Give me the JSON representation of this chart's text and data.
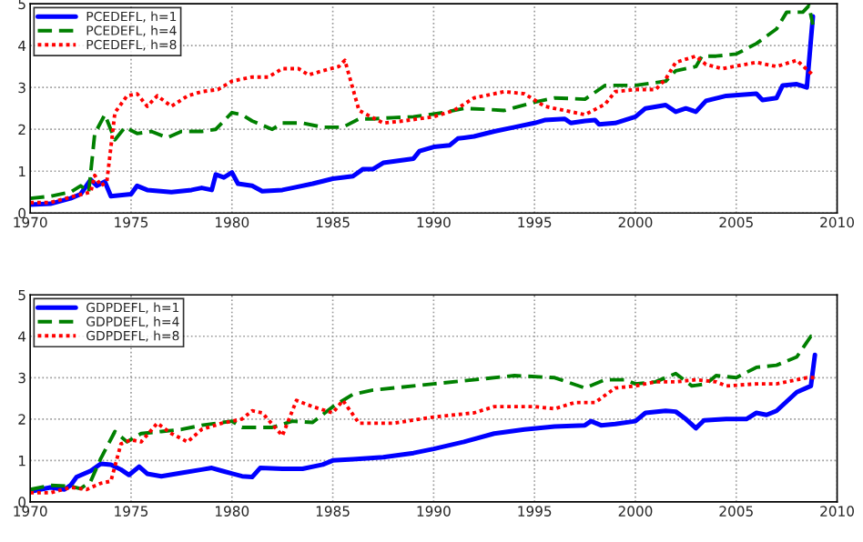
{
  "chart_data": [
    {
      "type": "line",
      "xlim": [
        1970,
        2010
      ],
      "xticks": [
        1970,
        1975,
        1980,
        1985,
        1990,
        1995,
        2000,
        2005,
        2010
      ],
      "ylim": [
        0,
        5
      ],
      "yticks": [
        0,
        1,
        2,
        3,
        4,
        5
      ],
      "grid": true,
      "legend": "top left",
      "series": [
        {
          "name": "PCEDEFL, h=1",
          "color": "#0000ff",
          "line_style": "solid",
          "x": [
            1970,
            1971,
            1972,
            1972.5,
            1973,
            1973.3,
            1973.7,
            1974,
            1975,
            1975.3,
            1975.8,
            1977,
            1978,
            1978.5,
            1979,
            1979.2,
            1979.6,
            1980,
            1980.3,
            1981,
            1981.5,
            1982.5,
            1983,
            1984,
            1985,
            1986,
            1986.5,
            1987,
            1987.5,
            1989,
            1989.3,
            1990,
            1990.8,
            1991.2,
            1992,
            1993,
            1994,
            1995,
            1995.5,
            1996.5,
            1996.8,
            1997.5,
            1998,
            1998.2,
            1999,
            2000,
            2000.5,
            2001.5,
            2002,
            2002.5,
            2003,
            2003.5,
            2004.5,
            2006,
            2006.3,
            2007,
            2007.3,
            2008,
            2008.5,
            2008.8
          ],
          "values": [
            0.2,
            0.22,
            0.35,
            0.45,
            0.8,
            0.65,
            0.75,
            0.4,
            0.45,
            0.65,
            0.55,
            0.5,
            0.55,
            0.6,
            0.55,
            0.92,
            0.85,
            0.97,
            0.7,
            0.65,
            0.52,
            0.55,
            0.6,
            0.7,
            0.82,
            0.88,
            1.05,
            1.05,
            1.2,
            1.3,
            1.48,
            1.58,
            1.62,
            1.78,
            1.83,
            1.95,
            2.05,
            2.15,
            2.22,
            2.25,
            2.15,
            2.2,
            2.22,
            2.12,
            2.15,
            2.3,
            2.5,
            2.58,
            2.42,
            2.5,
            2.42,
            2.68,
            2.8,
            2.85,
            2.7,
            2.75,
            3.05,
            3.08,
            3.0,
            4.7
          ]
        },
        {
          "name": "PCEDEFL, h=4",
          "color": "#008000",
          "line_style": "dashed",
          "x": [
            1970,
            1971,
            1972,
            1972.5,
            1972.9,
            1973.2,
            1973.7,
            1974.2,
            1974.7,
            1975.3,
            1976,
            1976.8,
            1977.5,
            1978.5,
            1979.2,
            1980,
            1980.5,
            1981,
            1982,
            1982.5,
            1983.5,
            1984.5,
            1985.5,
            1986.3,
            1987,
            1988,
            1989,
            1990.5,
            1991.5,
            1992.5,
            1993.5,
            1995,
            1996,
            1997.5,
            1998.5,
            2000,
            2001.5,
            2002,
            2003,
            2003.3,
            2004,
            2005,
            2006,
            2007,
            2007.5,
            2008.3,
            2008.6,
            2008.8
          ],
          "values": [
            0.35,
            0.4,
            0.5,
            0.65,
            0.5,
            1.9,
            2.35,
            1.75,
            2.05,
            1.9,
            1.95,
            1.8,
            1.95,
            1.95,
            2.0,
            2.4,
            2.35,
            2.2,
            2.0,
            2.15,
            2.15,
            2.05,
            2.05,
            2.25,
            2.25,
            2.28,
            2.3,
            2.4,
            2.5,
            2.48,
            2.45,
            2.65,
            2.75,
            2.72,
            3.05,
            3.05,
            3.15,
            3.4,
            3.5,
            3.75,
            3.75,
            3.8,
            4.05,
            4.4,
            4.8,
            4.8,
            4.95,
            4.5
          ]
        },
        {
          "name": "PCEDEFL, h=8",
          "color": "#ff0000",
          "line_style": "dotted",
          "x": [
            1970,
            1971,
            1972,
            1973,
            1973.2,
            1973.5,
            1973.8,
            1974.2,
            1974.8,
            1975.3,
            1975.8,
            1976.3,
            1977,
            1977.8,
            1978.5,
            1979.3,
            1980,
            1981,
            1981.8,
            1982.5,
            1983.3,
            1983.8,
            1984.5,
            1985.3,
            1985.6,
            1986.3,
            1987.5,
            1988.5,
            1990,
            1991,
            1992,
            1993.5,
            1994.5,
            1995.5,
            1996.5,
            1997.5,
            1998.5,
            1999,
            2000,
            2001,
            2001.5,
            2002,
            2003,
            2003.5,
            2004.3,
            2006,
            2007,
            2008,
            2008.8
          ],
          "values": [
            0.25,
            0.25,
            0.38,
            0.5,
            0.9,
            0.65,
            0.75,
            2.4,
            2.8,
            2.85,
            2.55,
            2.8,
            2.55,
            2.8,
            2.9,
            2.95,
            3.15,
            3.25,
            3.25,
            3.45,
            3.45,
            3.3,
            3.4,
            3.5,
            3.65,
            2.45,
            2.15,
            2.2,
            2.3,
            2.45,
            2.75,
            2.9,
            2.85,
            2.55,
            2.45,
            2.35,
            2.6,
            2.9,
            2.95,
            2.95,
            3.2,
            3.6,
            3.75,
            3.55,
            3.45,
            3.6,
            3.5,
            3.65,
            3.3
          ]
        }
      ]
    },
    {
      "type": "line",
      "xlim": [
        1970,
        2010
      ],
      "xticks": [
        1970,
        1975,
        1980,
        1985,
        1990,
        1995,
        2000,
        2005,
        2010
      ],
      "ylim": [
        0,
        5
      ],
      "yticks": [
        0,
        1,
        2,
        3,
        4,
        5
      ],
      "grid": true,
      "legend": "top left",
      "series": [
        {
          "name": "GDPDEFL, h=1",
          "color": "#0000ff",
          "line_style": "solid",
          "x": [
            1970,
            1971,
            1971.7,
            1972,
            1972.3,
            1973,
            1973.5,
            1974,
            1974.5,
            1974.9,
            1975.4,
            1975.8,
            1976.5,
            1977.5,
            1978.5,
            1979,
            1979.5,
            1980.5,
            1981,
            1981.4,
            1982.5,
            1983.5,
            1984.5,
            1985,
            1986,
            1987.5,
            1989,
            1990,
            1991.5,
            1993,
            1994.5,
            1996,
            1997.5,
            1997.8,
            1998.3,
            1999,
            2000,
            2000.5,
            2001.5,
            2002,
            2002.5,
            2003,
            2003.4,
            2004.5,
            2005.5,
            2006,
            2006.5,
            2007,
            2008,
            2008.7,
            2008.9
          ],
          "values": [
            0.25,
            0.35,
            0.3,
            0.4,
            0.6,
            0.75,
            0.92,
            0.9,
            0.78,
            0.65,
            0.85,
            0.68,
            0.62,
            0.7,
            0.78,
            0.82,
            0.75,
            0.62,
            0.6,
            0.82,
            0.8,
            0.8,
            0.9,
            1.0,
            1.03,
            1.08,
            1.18,
            1.28,
            1.45,
            1.65,
            1.75,
            1.82,
            1.85,
            1.95,
            1.85,
            1.88,
            1.95,
            2.15,
            2.2,
            2.18,
            2.0,
            1.78,
            1.97,
            2.0,
            2.0,
            2.15,
            2.1,
            2.2,
            2.65,
            2.8,
            3.55
          ]
        },
        {
          "name": "GDPDEFL, h=4",
          "color": "#008000",
          "line_style": "dashed",
          "x": [
            1970,
            1971,
            1972,
            1972.5,
            1973,
            1973.5,
            1974.2,
            1974.8,
            1975.5,
            1976.5,
            1977.5,
            1978.5,
            1980,
            1980.5,
            1982,
            1983,
            1984,
            1985,
            1986,
            1987,
            1990,
            1992,
            1994,
            1996,
            1997.5,
            1998.5,
            1999.5,
            2000,
            2001,
            2002,
            2002.8,
            2003.5,
            2004,
            2005,
            2006,
            2007,
            2008,
            2008.7,
            2008.9
          ],
          "values": [
            0.3,
            0.4,
            0.38,
            0.32,
            0.5,
            1.05,
            1.7,
            1.45,
            1.65,
            1.7,
            1.75,
            1.85,
            1.95,
            1.8,
            1.8,
            1.95,
            1.92,
            2.3,
            2.6,
            2.7,
            2.85,
            2.95,
            3.05,
            3.0,
            2.75,
            2.95,
            2.95,
            2.85,
            2.9,
            3.1,
            2.8,
            2.85,
            3.05,
            3.0,
            3.25,
            3.3,
            3.5,
            4.0,
            3.95
          ]
        },
        {
          "name": "GDPDEFL, h=8",
          "color": "#ff0000",
          "line_style": "dotted",
          "x": [
            1970,
            1971,
            1972,
            1972.8,
            1973.5,
            1974,
            1974.5,
            1975,
            1975.5,
            1976.3,
            1977,
            1977.8,
            1978.5,
            1979.5,
            1980.5,
            1981,
            1981.5,
            1982.5,
            1983.2,
            1984,
            1985,
            1985.5,
            1986.3,
            1988,
            1990,
            1992,
            1993,
            1995,
            1996,
            1997,
            1998,
            1999,
            2000,
            2001,
            2002,
            2003,
            2004,
            2004.5,
            2006,
            2007,
            2008.5,
            2008.9
          ],
          "values": [
            0.22,
            0.22,
            0.35,
            0.3,
            0.45,
            0.5,
            1.4,
            1.5,
            1.45,
            1.9,
            1.65,
            1.45,
            1.75,
            1.9,
            2.0,
            2.2,
            2.15,
            1.6,
            2.45,
            2.3,
            2.15,
            2.45,
            1.9,
            1.9,
            2.05,
            2.15,
            2.3,
            2.3,
            2.25,
            2.4,
            2.4,
            2.75,
            2.8,
            2.9,
            2.9,
            2.95,
            2.9,
            2.8,
            2.85,
            2.85,
            3.0,
            3.0
          ]
        }
      ]
    }
  ]
}
